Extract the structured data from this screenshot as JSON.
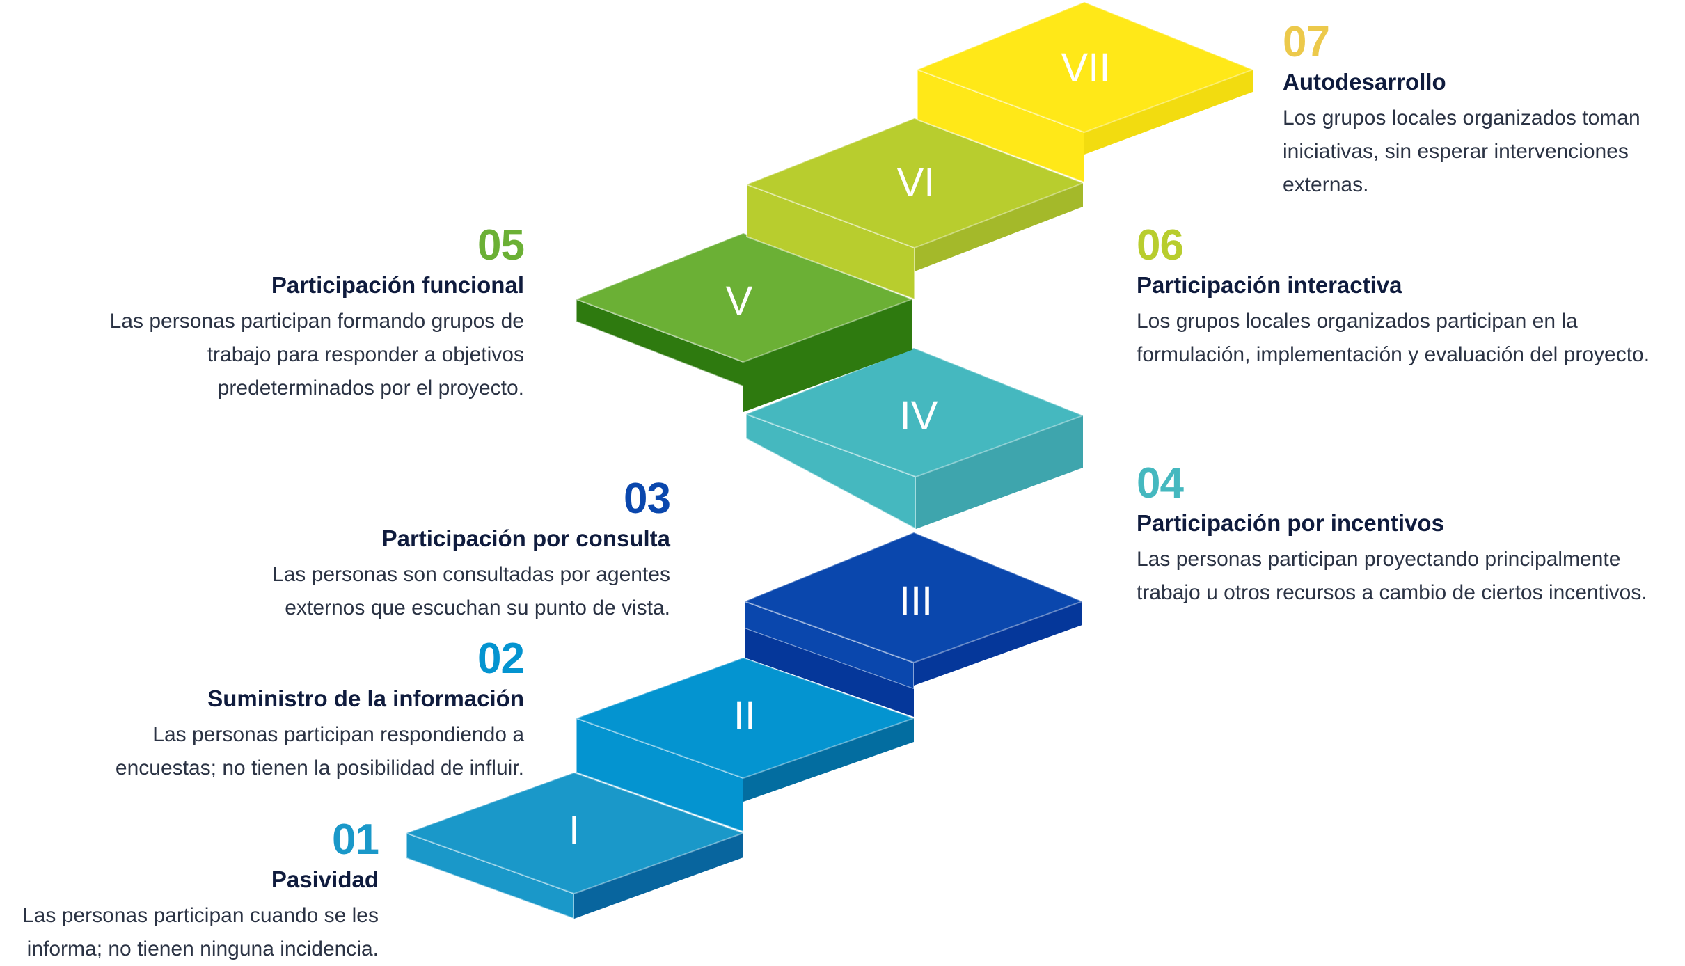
{
  "colors": {
    "s1": {
      "top": "#1a98c9",
      "front": "#1a98c9",
      "side": "#08659e"
    },
    "s2": {
      "top": "#0494d0",
      "front": "#0494d0",
      "side": "#036da0"
    },
    "s3": {
      "top": "#0a47ad",
      "front": "#0a47ad",
      "side": "#05379a"
    },
    "s4": {
      "top": "#45b8bf",
      "front": "#45b8bf",
      "side": "#3ea5ad"
    },
    "s5": {
      "top": "#6bb035",
      "front": "#2e7a0f",
      "side": "#2e7a0f"
    },
    "s6": {
      "top": "#b8cd2e",
      "front": "#b8cd2e",
      "side": "#a4b92a"
    },
    "s7": {
      "top": "#ffe818",
      "front": "#ffe818",
      "side": "#f2dc10"
    },
    "title": "#0f1b3d",
    "text": "#2b3344"
  },
  "steps": [
    {
      "roman": "I",
      "number": "01",
      "title": "Pasividad",
      "lines": [
        "Las personas participan cuando se les",
        "informa; no tienen ninguna incidencia."
      ],
      "number_color": "#1a98c9"
    },
    {
      "roman": "II",
      "number": "02",
      "title": "Suministro de la información",
      "lines": [
        "Las personas participan respondiendo a",
        "encuestas; no tienen la posibilidad de influir."
      ],
      "number_color": "#0494d0"
    },
    {
      "roman": "III",
      "number": "03",
      "title": "Participación por consulta",
      "lines": [
        "Las personas son consultadas por agentes",
        "externos que escuchan su punto de vista."
      ],
      "number_color": "#0a47ad"
    },
    {
      "roman": "IV",
      "number": "04",
      "title": "Participación por incentivos",
      "lines": [
        "Las personas participan proyectando principalmente",
        "trabajo u otros recursos a cambio de ciertos incentivos."
      ],
      "number_color": "#45b8bf"
    },
    {
      "roman": "V",
      "number": "05",
      "title": "Participación funcional",
      "lines": [
        "Las personas participan formando grupos de",
        "trabajo para responder a objetivos",
        "predeterminados por el proyecto."
      ],
      "number_color": "#6bb035"
    },
    {
      "roman": "VI",
      "number": "06",
      "title": "Participación interactiva",
      "lines": [
        "Los grupos locales organizados participan en la",
        "formulación, implementación y evaluación del proyecto."
      ],
      "number_color": "#b8cd2e"
    },
    {
      "roman": "VII",
      "number": "07",
      "title": "Autodesarrollo",
      "lines": [
        "Los grupos locales organizados toman",
        "iniciativas, sin esperar intervenciones",
        "externas."
      ],
      "number_color": "#ecc94b"
    }
  ]
}
